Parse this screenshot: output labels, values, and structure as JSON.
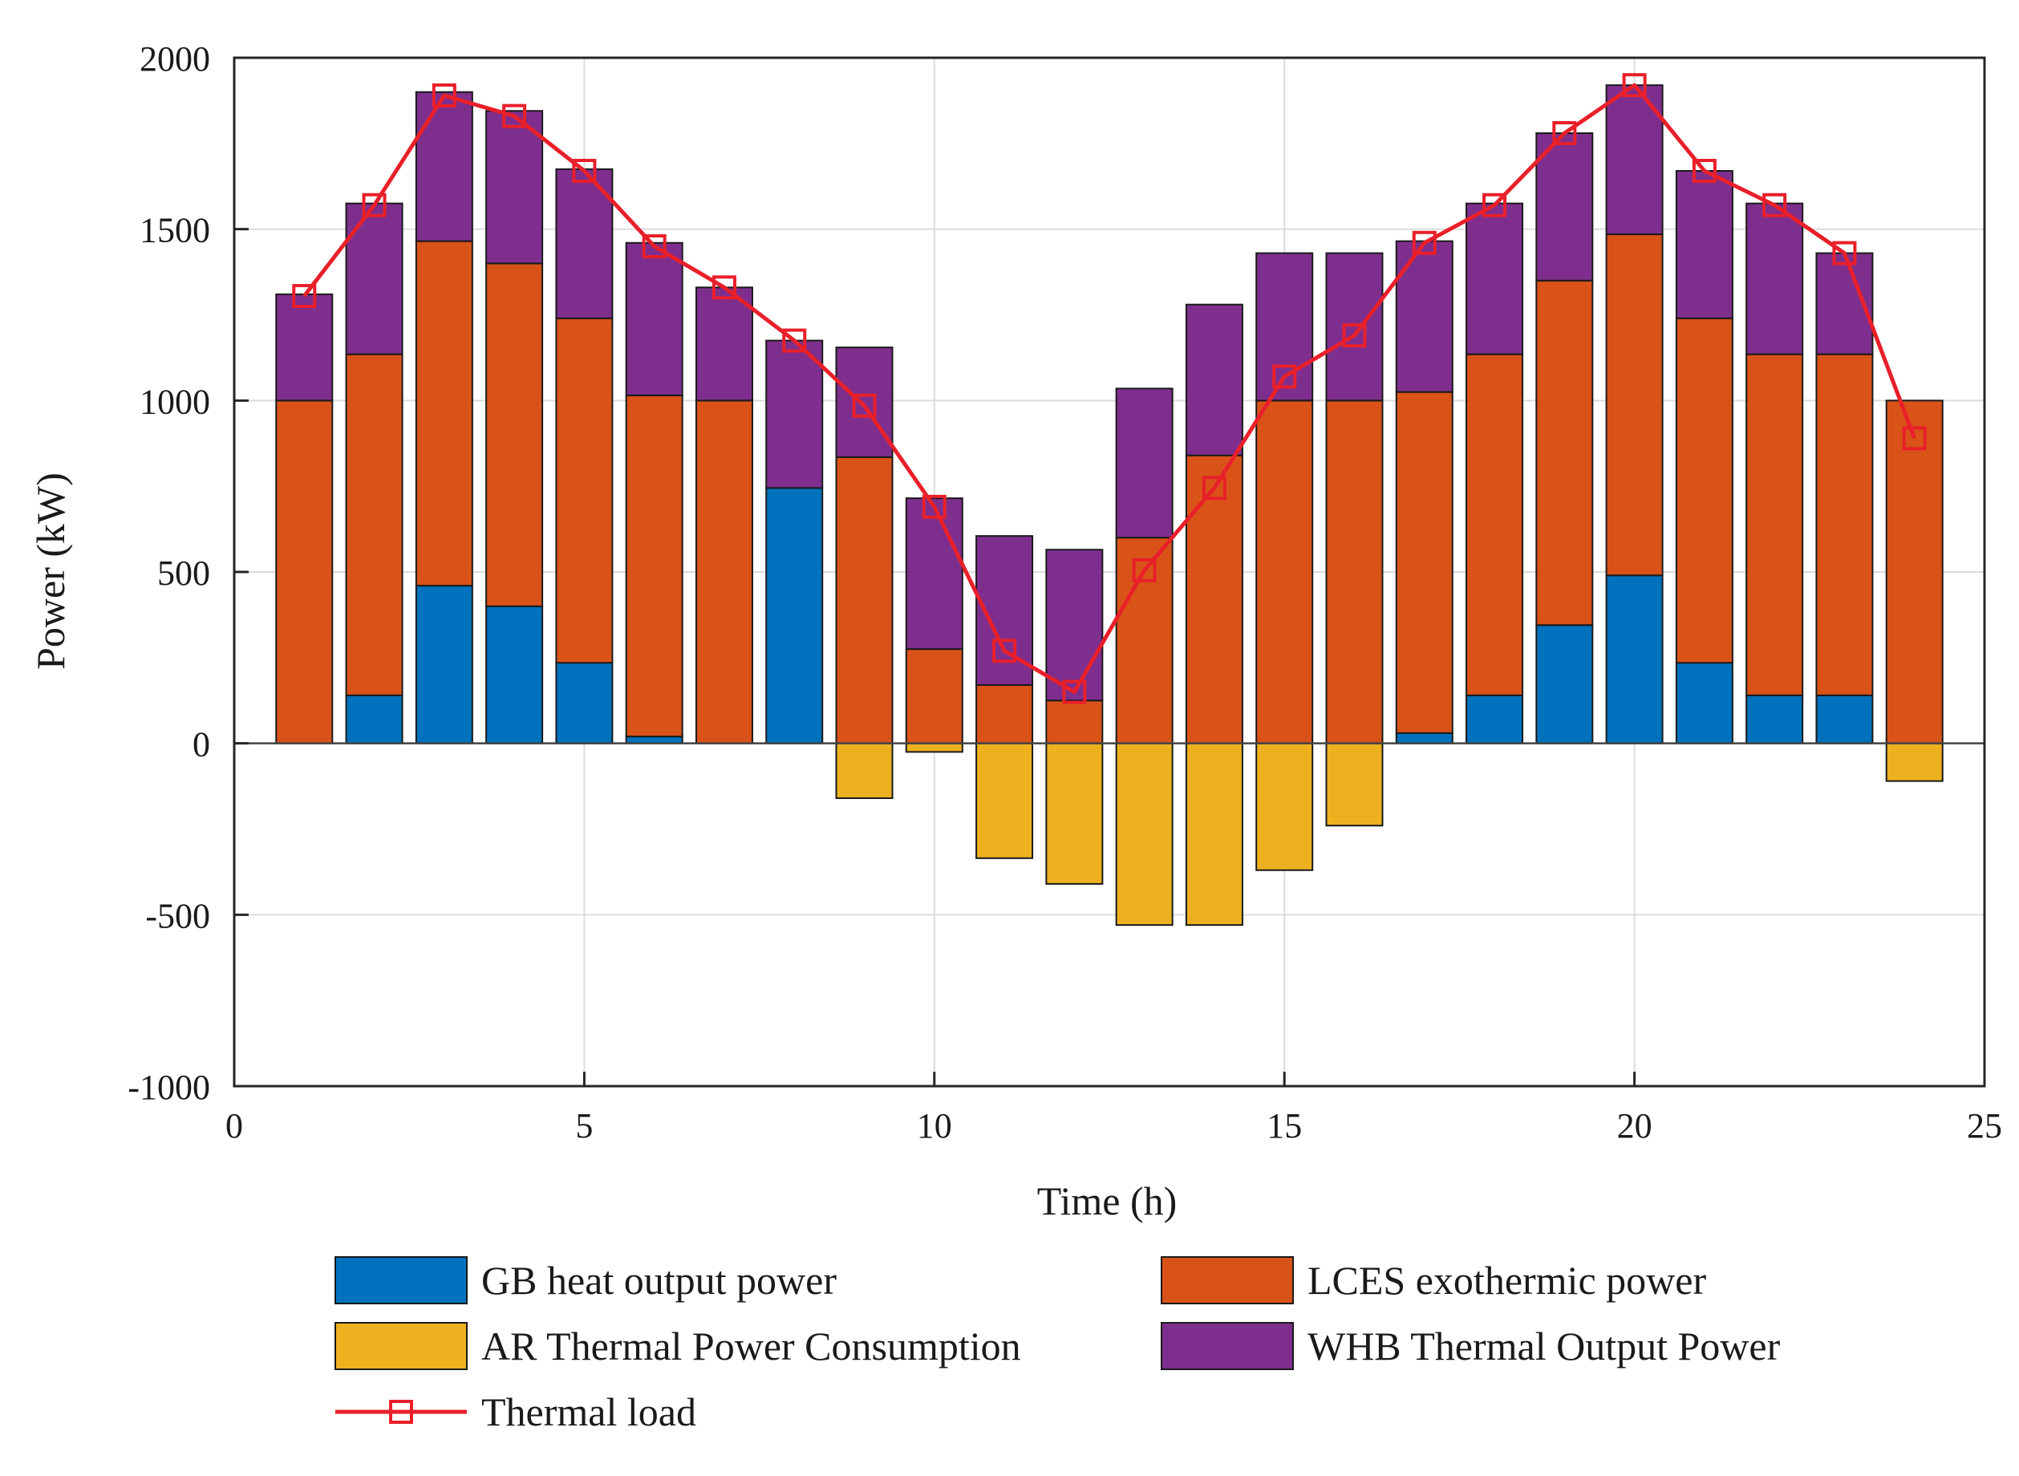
{
  "colors": {
    "gb": "#0072bd",
    "lces": "#d95319",
    "ar": "#edb120",
    "whb": "#7e2f8e",
    "load": "#e8202a",
    "grid": "#dcdcdc",
    "axis": "#262626"
  },
  "chart_data": {
    "type": "bar",
    "stacked": true,
    "xlabel": "Time (h)",
    "ylabel": "Power (kW)",
    "xlim": [
      0,
      25
    ],
    "ylim": [
      -1000,
      2000
    ],
    "xticks": [
      0,
      5,
      10,
      15,
      20,
      25
    ],
    "yticks": [
      -1000,
      -500,
      0,
      500,
      1000,
      1500,
      2000
    ],
    "grid": true,
    "legend_position": "bottom",
    "x": [
      1,
      2,
      3,
      4,
      5,
      6,
      7,
      8,
      9,
      10,
      11,
      12,
      13,
      14,
      15,
      16,
      17,
      18,
      19,
      20,
      21,
      22,
      23,
      24
    ],
    "series": [
      {
        "key": "gb",
        "name": "GB heat output power",
        "kind": "bar",
        "values": [
          0,
          140,
          460,
          400,
          235,
          20,
          0,
          745,
          0,
          0,
          0,
          0,
          0,
          0,
          0,
          0,
          30,
          140,
          345,
          490,
          235,
          140,
          140,
          0
        ]
      },
      {
        "key": "lces",
        "name": "LCES exothermic power",
        "kind": "bar",
        "values": [
          1000,
          995,
          1005,
          1000,
          1005,
          995,
          1000,
          0,
          835,
          275,
          170,
          125,
          600,
          840,
          1000,
          1000,
          995,
          995,
          1005,
          995,
          1005,
          995,
          995,
          1000
        ]
      },
      {
        "key": "whb",
        "name": "WHB Thermal Output Power",
        "kind": "bar",
        "values": [
          310,
          440,
          435,
          445,
          435,
          445,
          330,
          430,
          320,
          440,
          435,
          440,
          435,
          440,
          430,
          430,
          440,
          440,
          430,
          435,
          430,
          440,
          295,
          0
        ]
      },
      {
        "key": "ar",
        "name": "AR Thermal Power Consumption",
        "kind": "bar",
        "values": [
          0,
          0,
          0,
          0,
          0,
          0,
          0,
          0,
          -160,
          -25,
          -335,
          -410,
          -530,
          -530,
          -370,
          -240,
          0,
          0,
          0,
          0,
          0,
          0,
          0,
          -110
        ]
      },
      {
        "key": "load",
        "name": "Thermal load",
        "kind": "line",
        "marker": "square",
        "values": [
          1305,
          1570,
          1890,
          1830,
          1670,
          1450,
          1330,
          1175,
          985,
          690,
          270,
          150,
          505,
          745,
          1070,
          1190,
          1460,
          1570,
          1780,
          1920,
          1670,
          1570,
          1430,
          890
        ]
      }
    ]
  },
  "legend": [
    {
      "key": "gb",
      "label": "GB heat output power",
      "type": "patch"
    },
    {
      "key": "lces",
      "label": "LCES exothermic power",
      "type": "patch"
    },
    {
      "key": "ar",
      "label": "AR Thermal Power Consumption",
      "type": "patch"
    },
    {
      "key": "whb",
      "label": "WHB Thermal Output Power",
      "type": "patch"
    },
    {
      "key": "load",
      "label": "Thermal load",
      "type": "line"
    }
  ]
}
